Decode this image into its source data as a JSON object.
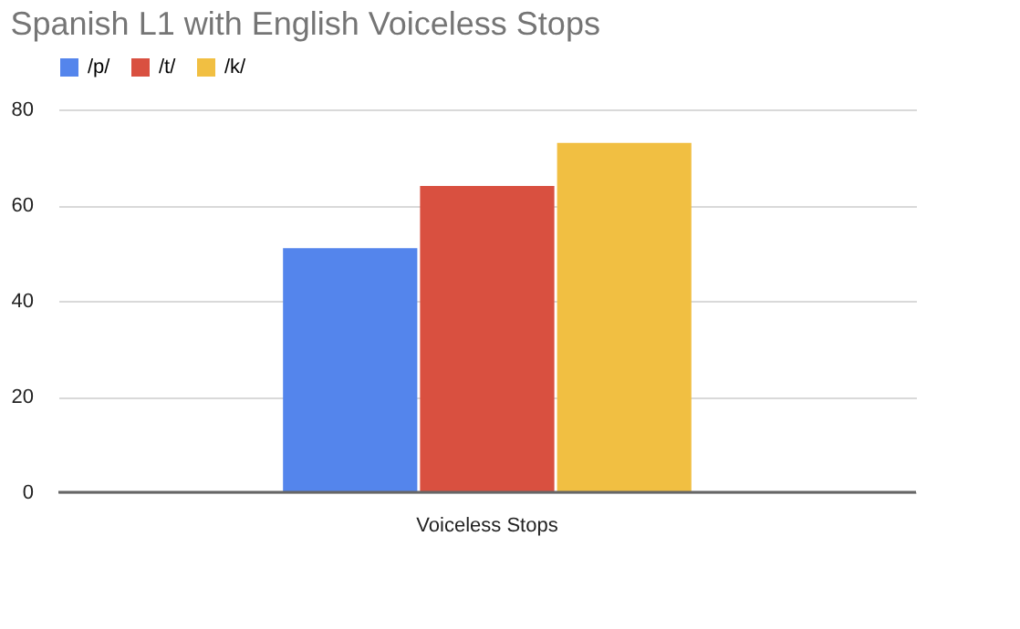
{
  "chart_data": {
    "type": "bar",
    "title": "Spanish L1 with English Voiceless Stops",
    "categories": [
      "Voiceless Stops"
    ],
    "series": [
      {
        "name": "/p/",
        "color": "#5485ec",
        "values": [
          51
        ]
      },
      {
        "name": "/t/",
        "color": "#d95040",
        "values": [
          64
        ]
      },
      {
        "name": "/k/",
        "color": "#f1bf42",
        "values": [
          73
        ]
      }
    ],
    "ylim": [
      0,
      80
    ],
    "yticks": [
      0,
      20,
      40,
      60,
      80
    ],
    "grid": "y",
    "legend": "top"
  }
}
